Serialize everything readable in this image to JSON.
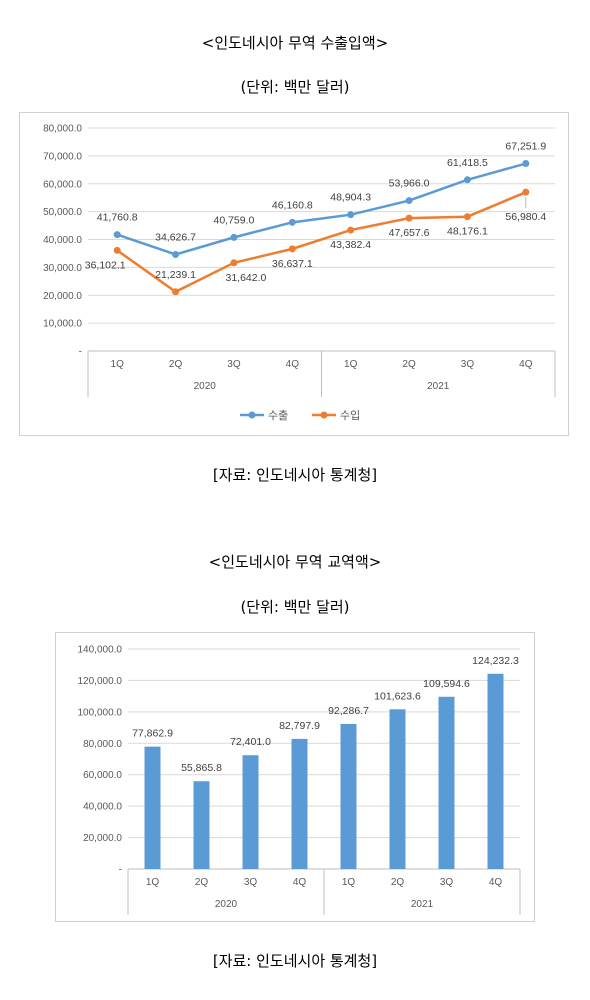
{
  "headings": {
    "title1": "<인도네시아 무역 수출입액>",
    "unit1": "(단위: 백만 달러)",
    "source1": "[자료: 인도네시아 통계청]",
    "title2": "<인도네시아 무역 교역액>",
    "unit2": "(단위: 백만 달러)",
    "source2": "[자료: 인도네시아 통계청]"
  },
  "chart_data": [
    {
      "type": "line",
      "categories": [
        "1Q",
        "2Q",
        "3Q",
        "4Q",
        "1Q",
        "2Q",
        "3Q",
        "4Q"
      ],
      "groups": [
        {
          "label": "2020",
          "span": 4
        },
        {
          "label": "2021",
          "span": 4
        }
      ],
      "series": [
        {
          "name": "수출",
          "color": "#5b9bd5",
          "values": [
            41760.8,
            34626.7,
            40759.0,
            46160.8,
            48904.3,
            53966.0,
            61418.5,
            67251.9
          ],
          "labels": [
            "41,760.8",
            "34,626.7",
            "40,759.0",
            "46,160.8",
            "48,904.3",
            "53,966.0",
            "61,418.5",
            "67,251.9"
          ]
        },
        {
          "name": "수입",
          "color": "#ed7d31",
          "values": [
            36102.1,
            21239.1,
            31642.0,
            36637.1,
            43382.4,
            47657.6,
            48176.1,
            56980.4
          ],
          "labels": [
            "36,102.1",
            "21,239.1",
            "31,642.0",
            "36,637.1",
            "43,382.4",
            "47,657.6",
            "48,176.1",
            "56,980.4"
          ]
        }
      ],
      "ylim": [
        0,
        80000
      ],
      "yticks": [
        "-",
        "10,000.0",
        "20,000.0",
        "30,000.0",
        "40,000.0",
        "50,000.0",
        "60,000.0",
        "70,000.0",
        "80,000.0"
      ],
      "grid": true,
      "legend": "bottom"
    },
    {
      "type": "bar",
      "categories": [
        "1Q",
        "2Q",
        "3Q",
        "4Q",
        "1Q",
        "2Q",
        "3Q",
        "4Q"
      ],
      "groups": [
        {
          "label": "2020",
          "span": 4
        },
        {
          "label": "2021",
          "span": 4
        }
      ],
      "color": "#5b9bd5",
      "values": [
        77862.9,
        55865.8,
        72401.0,
        82797.9,
        92286.7,
        101623.6,
        109594.6,
        124232.3
      ],
      "labels": [
        "77,862.9",
        "55,865.8",
        "72,401.0",
        "82,797.9",
        "92,286.7",
        "101,623.6",
        "109,594.6",
        "124,232.3"
      ],
      "ylim": [
        0,
        140000
      ],
      "yticks": [
        "-",
        "20,000.0",
        "40,000.0",
        "60,000.0",
        "80,000.0",
        "100,000.0",
        "120,000.0",
        "140,000.0"
      ],
      "grid": true
    }
  ]
}
